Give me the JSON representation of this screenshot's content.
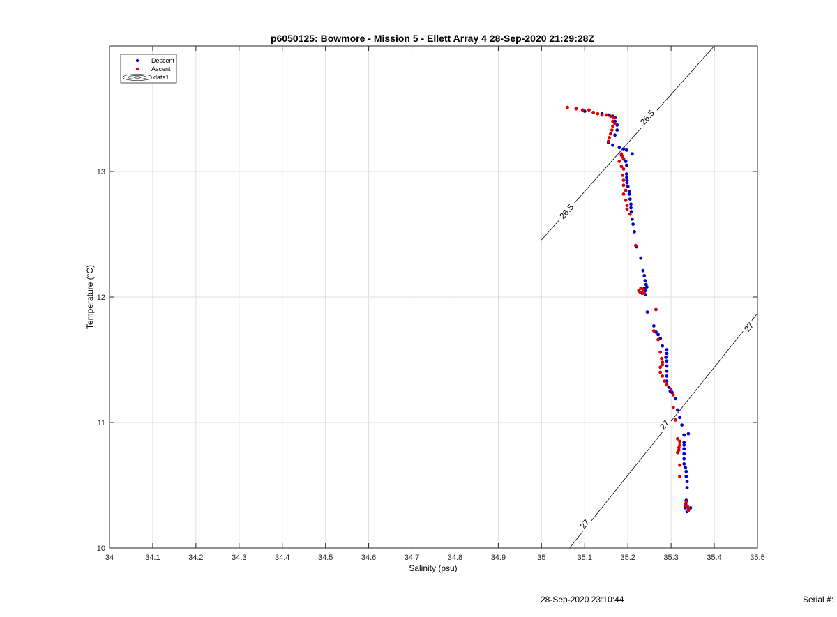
{
  "chart_data": {
    "type": "scatter",
    "title": "p6050125: Bowmore - Mission 5 - Ellett Array 4 28-Sep-2020 21:29:28Z",
    "xlabel": "Salinity (psu)",
    "ylabel": "Temperature (°C)",
    "xlim": [
      34,
      35.5
    ],
    "ylim": [
      10,
      14
    ],
    "x_ticks": [
      34,
      34.1,
      34.2,
      34.3,
      34.4,
      34.5,
      34.6,
      34.7,
      34.8,
      34.9,
      35,
      35.1,
      35.2,
      35.3,
      35.4,
      35.5
    ],
    "x_tick_labels": [
      "34",
      "34.1",
      "34.2",
      "34.3",
      "34.4",
      "34.5",
      "34.6",
      "34.7",
      "34.8",
      "34.9",
      "35",
      "35.1",
      "35.2",
      "35.3",
      "35.4",
      "35.5"
    ],
    "y_ticks": [
      10,
      11,
      12,
      13
    ],
    "y_tick_labels": [
      "10",
      "11",
      "12",
      "13"
    ],
    "grid": true,
    "legend_position": "top-left",
    "legend": [
      {
        "label": "Descent",
        "marker": "dot",
        "color": "#0000cc"
      },
      {
        "label": "Ascent",
        "marker": "dot",
        "color": "#dd0000"
      },
      {
        "label": "data1",
        "marker": "contour"
      }
    ],
    "series": [
      {
        "name": "Descent",
        "color": "#0000cc",
        "points": [
          [
            35.08,
            13.5
          ],
          [
            35.1,
            13.48
          ],
          [
            35.12,
            13.47
          ],
          [
            35.14,
            13.46
          ],
          [
            35.155,
            13.45
          ],
          [
            35.165,
            13.44
          ],
          [
            35.17,
            13.43
          ],
          [
            35.17,
            13.4
          ],
          [
            35.175,
            13.37
          ],
          [
            35.175,
            13.33
          ],
          [
            35.17,
            13.29
          ],
          [
            35.155,
            13.23
          ],
          [
            35.165,
            13.21
          ],
          [
            35.18,
            13.19
          ],
          [
            35.19,
            13.18
          ],
          [
            35.197,
            13.17
          ],
          [
            35.21,
            13.14
          ],
          [
            35.185,
            13.13
          ],
          [
            35.19,
            13.1
          ],
          [
            35.195,
            13.08
          ],
          [
            35.197,
            13.05
          ],
          [
            35.197,
            12.98
          ],
          [
            35.197,
            12.95
          ],
          [
            35.198,
            12.93
          ],
          [
            35.198,
            12.91
          ],
          [
            35.2,
            12.88
          ],
          [
            35.203,
            12.84
          ],
          [
            35.203,
            12.82
          ],
          [
            35.205,
            12.78
          ],
          [
            35.207,
            12.74
          ],
          [
            35.207,
            12.71
          ],
          [
            35.208,
            12.68
          ],
          [
            35.21,
            12.62
          ],
          [
            35.212,
            12.58
          ],
          [
            35.215,
            12.52
          ],
          [
            35.22,
            12.4
          ],
          [
            35.23,
            12.31
          ],
          [
            35.235,
            12.21
          ],
          [
            35.238,
            12.17
          ],
          [
            35.24,
            12.13
          ],
          [
            35.242,
            12.1
          ],
          [
            35.244,
            12.08
          ],
          [
            35.238,
            12.07
          ],
          [
            35.24,
            12.05
          ],
          [
            35.233,
            12.03
          ],
          [
            35.24,
            12.02
          ],
          [
            35.245,
            11.88
          ],
          [
            35.26,
            11.77
          ],
          [
            35.265,
            11.72
          ],
          [
            35.27,
            11.7
          ],
          [
            35.275,
            11.67
          ],
          [
            35.28,
            11.61
          ],
          [
            35.29,
            11.58
          ],
          [
            35.29,
            11.55
          ],
          [
            35.288,
            11.52
          ],
          [
            35.29,
            11.49
          ],
          [
            35.29,
            11.45
          ],
          [
            35.29,
            11.41
          ],
          [
            35.29,
            11.37
          ],
          [
            35.29,
            11.33
          ],
          [
            35.295,
            11.28
          ],
          [
            35.298,
            11.25
          ],
          [
            35.302,
            11.24
          ],
          [
            35.31,
            11.19
          ],
          [
            35.315,
            11.1
          ],
          [
            35.32,
            11.04
          ],
          [
            35.325,
            10.98
          ],
          [
            35.34,
            10.91
          ],
          [
            35.33,
            10.9
          ],
          [
            35.33,
            10.84
          ],
          [
            35.33,
            10.82
          ],
          [
            35.33,
            10.79
          ],
          [
            35.33,
            10.75
          ],
          [
            35.33,
            10.71
          ],
          [
            35.33,
            10.67
          ],
          [
            35.333,
            10.64
          ],
          [
            35.335,
            10.61
          ],
          [
            35.335,
            10.57
          ],
          [
            35.337,
            10.53
          ],
          [
            35.337,
            10.48
          ],
          [
            35.335,
            10.38
          ],
          [
            35.334,
            10.35
          ],
          [
            35.333,
            10.32
          ],
          [
            35.345,
            10.32
          ],
          [
            35.34,
            10.3
          ],
          [
            35.337,
            10.29
          ]
        ]
      },
      {
        "name": "Ascent",
        "color": "#dd0000",
        "points": [
          [
            35.06,
            13.51
          ],
          [
            35.08,
            13.5
          ],
          [
            35.095,
            13.49
          ],
          [
            35.11,
            13.49
          ],
          [
            35.12,
            13.47
          ],
          [
            35.13,
            13.46
          ],
          [
            35.14,
            13.45
          ],
          [
            35.15,
            13.45
          ],
          [
            35.16,
            13.44
          ],
          [
            35.168,
            13.43
          ],
          [
            35.165,
            13.4
          ],
          [
            35.17,
            13.38
          ],
          [
            35.165,
            13.36
          ],
          [
            35.163,
            13.33
          ],
          [
            35.16,
            13.3
          ],
          [
            35.157,
            13.27
          ],
          [
            35.155,
            13.24
          ],
          [
            35.185,
            13.14
          ],
          [
            35.187,
            13.12
          ],
          [
            35.19,
            13.1
          ],
          [
            35.18,
            13.08
          ],
          [
            35.185,
            13.04
          ],
          [
            35.19,
            13.02
          ],
          [
            35.188,
            12.97
          ],
          [
            35.19,
            12.93
          ],
          [
            35.19,
            12.89
          ],
          [
            35.195,
            12.85
          ],
          [
            35.19,
            12.82
          ],
          [
            35.195,
            12.77
          ],
          [
            35.198,
            12.73
          ],
          [
            35.198,
            12.7
          ],
          [
            35.205,
            12.66
          ],
          [
            35.218,
            12.41
          ],
          [
            35.23,
            12.07
          ],
          [
            35.235,
            12.06
          ],
          [
            35.225,
            12.05
          ],
          [
            35.228,
            12.04
          ],
          [
            35.235,
            12.04
          ],
          [
            35.238,
            12.03
          ],
          [
            35.265,
            11.9
          ],
          [
            35.26,
            11.73
          ],
          [
            35.27,
            11.66
          ],
          [
            35.275,
            11.56
          ],
          [
            35.278,
            11.51
          ],
          [
            35.28,
            11.48
          ],
          [
            35.28,
            11.46
          ],
          [
            35.275,
            11.44
          ],
          [
            35.275,
            11.4
          ],
          [
            35.28,
            11.37
          ],
          [
            35.285,
            11.33
          ],
          [
            35.29,
            11.3
          ],
          [
            35.3,
            11.26
          ],
          [
            35.305,
            11.22
          ],
          [
            35.305,
            11.12
          ],
          [
            35.31,
            11.02
          ],
          [
            35.315,
            10.87
          ],
          [
            35.32,
            10.85
          ],
          [
            35.32,
            10.82
          ],
          [
            35.318,
            10.8
          ],
          [
            35.318,
            10.78
          ],
          [
            35.315,
            10.76
          ],
          [
            35.32,
            10.66
          ],
          [
            35.32,
            10.57
          ],
          [
            35.335,
            10.37
          ],
          [
            35.333,
            10.34
          ],
          [
            35.338,
            10.33
          ],
          [
            35.34,
            10.32
          ],
          [
            35.34,
            10.3
          ]
        ]
      }
    ],
    "contours": [
      {
        "level": "26.5",
        "points": [
          [
            35.0,
            12.455
          ],
          [
            35.4,
            14.0
          ]
        ],
        "labels": [
          {
            "text": "26.5",
            "x": 35.058,
            "y": 12.68
          },
          {
            "text": "26.5",
            "x": 35.245,
            "y": 13.43
          }
        ]
      },
      {
        "level": "27",
        "points": [
          [
            35.065,
            10.0
          ],
          [
            35.5,
            11.87
          ]
        ],
        "labels": [
          {
            "text": "27",
            "x": 35.1,
            "y": 10.19
          },
          {
            "text": "27",
            "x": 35.285,
            "y": 10.98
          },
          {
            "text": "27",
            "x": 35.48,
            "y": 11.76
          }
        ]
      }
    ]
  },
  "footer": {
    "date": "28-Sep-2020 23:10:44",
    "serial": "Serial #:"
  }
}
